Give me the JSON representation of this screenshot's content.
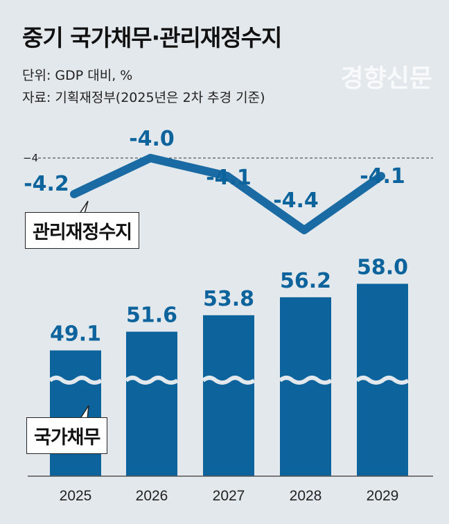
{
  "title": "중기 국가채무·관리재정수지",
  "unit": "단위: GDP 대비, %",
  "source": "자료: 기획재정부(2025년은 2차 추경 기준)",
  "watermark": "경향신문",
  "colors": {
    "bar": "#0d649d",
    "line": "#1a6aa3",
    "label": "#0d649d"
  },
  "chart_data": [
    {
      "type": "bar",
      "name": "국가채무",
      "categories": [
        "2025",
        "2026",
        "2027",
        "2028",
        "2029"
      ],
      "values": [
        49.1,
        51.6,
        53.8,
        56.2,
        58.0
      ],
      "axis_break": true,
      "callout": "국가채무"
    },
    {
      "type": "line",
      "name": "관리재정수지",
      "categories": [
        "2025",
        "2026",
        "2027",
        "2028",
        "2029"
      ],
      "values": [
        -4.2,
        -4.0,
        -4.1,
        -4.4,
        -4.1
      ],
      "labels": [
        "-4.2",
        "-4.0",
        "-4.1",
        "-4.4",
        "-4.1"
      ],
      "reference_line": {
        "value": -4,
        "label": "−4"
      },
      "callout": "관리재정수지"
    }
  ]
}
